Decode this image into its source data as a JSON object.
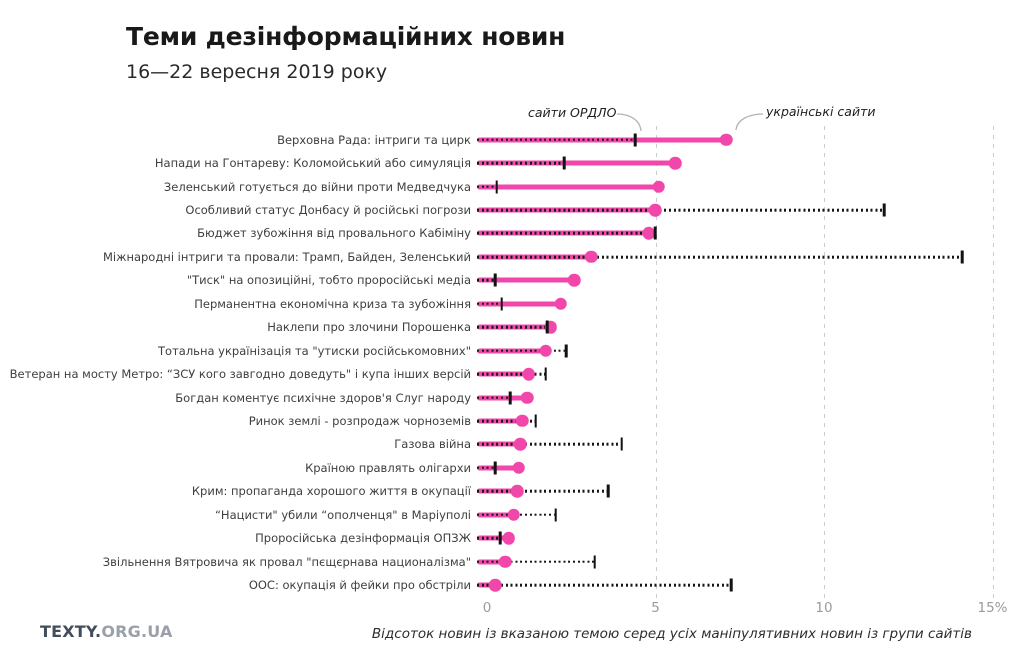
{
  "title": "Теми дезінформаційних новин",
  "subtitle": "16—22 вересня 2019 року",
  "logo": {
    "primary": "TEXTY.",
    "secondary": "ORG.UA"
  },
  "colors": {
    "pink": "#f146aa",
    "black_marker": "#121212",
    "gridline": "#cccccc",
    "axis_label": "#9b9b9b"
  },
  "chart_data": {
    "type": "dumbbell",
    "unit": "%",
    "xlim": [
      0,
      15
    ],
    "grid": "dashed vertical at 5, 10, 15",
    "legend_position": "annotations above first row",
    "x_ticks": [
      {
        "value": 0,
        "label": "0"
      },
      {
        "value": 5,
        "label": "5"
      },
      {
        "value": 10,
        "label": "10"
      },
      {
        "value": 15,
        "label": "15%"
      }
    ],
    "series": [
      {
        "name": "сайти ОРДЛО",
        "marker": "black-tick-dotted-line",
        "color": "#121212"
      },
      {
        "name": "українські сайти",
        "marker": "pink-dot-solid-line",
        "color": "#f146aa"
      }
    ],
    "xlabel": "Відсоток новин із вказаною темою серед усіх маніпулятивних новин із групи сайтів",
    "rows": [
      {
        "label": "Верховна Рада: інтриги та цирк",
        "ordlo": 4.6,
        "ua": 7.3
      },
      {
        "label": "Напади на Гонтареву: Коломойський або симуляція",
        "ordlo": 2.5,
        "ua": 5.8
      },
      {
        "label": "Зеленський готується до війни проти Медведчука",
        "ordlo": 0.5,
        "ua": 5.3
      },
      {
        "label": "Особливий статус Донбасу й російські погрози",
        "ordlo": 12.0,
        "ua": 5.2
      },
      {
        "label": "Бюджет зубожіння від провального Кабіміну",
        "ordlo": 5.2,
        "ua": 5.0
      },
      {
        "label": "Міжнародні інтриги та провали: Трамп, Байден, Зеленський",
        "ordlo": 14.3,
        "ua": 3.3
      },
      {
        "label": "\"Тиск\" на опозиційні, тобто проросійські медіа",
        "ordlo": 0.45,
        "ua": 2.8
      },
      {
        "label": "Перманентна економічна криза та зубожіння",
        "ordlo": 0.65,
        "ua": 2.4
      },
      {
        "label": "Наклепи про злочини Порошенка",
        "ordlo": 2.0,
        "ua": 2.1
      },
      {
        "label": "Тотальна українізація та \"утиски російськомовних\"",
        "ordlo": 2.55,
        "ua": 1.95
      },
      {
        "label": "Ветеран на мосту Метро: “ЗСУ кого завгодно доведуть\" і купа інших версій",
        "ordlo": 1.95,
        "ua": 1.45
      },
      {
        "label": "Богдан коментує психічне здоров'я Слуг народу",
        "ordlo": 0.9,
        "ua": 1.4
      },
      {
        "label": "Ринок землі - розпродаж чорноземів",
        "ordlo": 1.65,
        "ua": 1.25
      },
      {
        "label": "Газова війна",
        "ordlo": 4.2,
        "ua": 1.2
      },
      {
        "label": "Країною правлять олігархи",
        "ordlo": 0.45,
        "ua": 1.15
      },
      {
        "label": "Крим: пропаганда хорошого життя в окупації",
        "ordlo": 3.8,
        "ua": 1.1
      },
      {
        "label": "“Нацисти\" убили “ополченця\" в Маріуполі",
        "ordlo": 2.25,
        "ua": 1.0
      },
      {
        "label": "Проросійська дезінформація ОПЗЖ",
        "ordlo": 0.6,
        "ua": 0.85
      },
      {
        "label": "Звільнення Вятровича як провал \"пєщєрнава националізма\"",
        "ordlo": 3.4,
        "ua": 0.75
      },
      {
        "label": "ООС: окупація й фейки про обстріли",
        "ordlo": 7.45,
        "ua": 0.45
      }
    ]
  }
}
